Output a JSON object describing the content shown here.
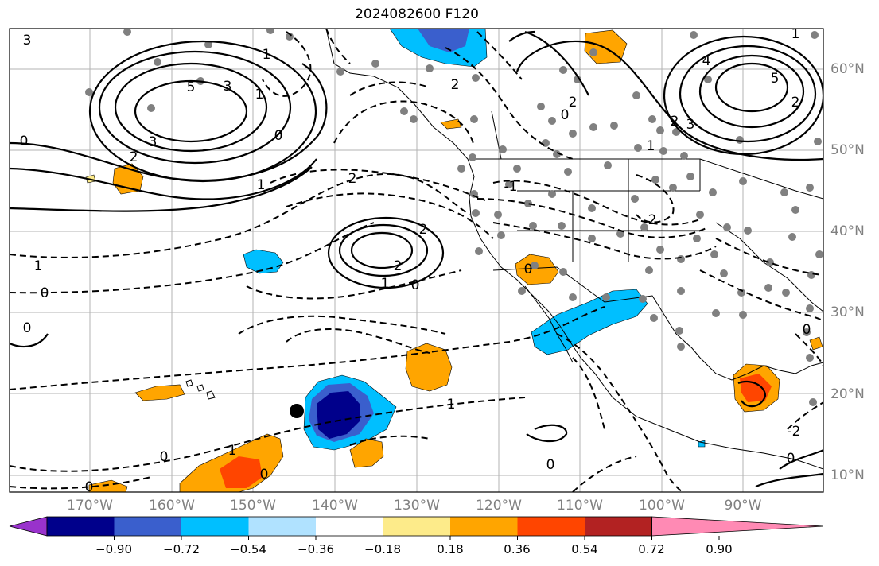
{
  "title": "2024082600 F120",
  "lat_labels": [
    "60°N",
    "50°N",
    "40°N",
    "30°N",
    "20°N",
    "10°N"
  ],
  "lon_labels": [
    "170°W",
    "160°W",
    "150°W",
    "140°W",
    "130°W",
    "120°W",
    "110°W",
    "100°W",
    "90°W"
  ],
  "colorbar": {
    "ticks": [
      "−0.90",
      "−0.72",
      "−0.54",
      "−0.36",
      "−0.18",
      "0.18",
      "0.36",
      "0.54",
      "0.72",
      "0.90"
    ],
    "colors": [
      "#9932cc",
      "#00008b",
      "#3a5fcd",
      "#00bfff",
      "#b0e2ff",
      "#ffffff",
      "#fdeb8a",
      "#ffa500",
      "#ff4500",
      "#b22222",
      "#ff8ab4"
    ]
  },
  "contour_labels": [
    "3",
    "5",
    "3",
    "2",
    "0",
    "0",
    "1",
    "1",
    "1",
    "0",
    "2",
    "2",
    "2",
    "1",
    "0",
    "2",
    "1",
    "0",
    "0",
    "0",
    "1",
    "0",
    "-1",
    "0",
    "2",
    "5",
    "4",
    "3",
    "2",
    "1",
    "0",
    "1",
    "2",
    "-2",
    "0",
    "0",
    "1",
    "3",
    "0",
    "2"
  ],
  "marker_symbol": "filled-circle-storm-position"
}
